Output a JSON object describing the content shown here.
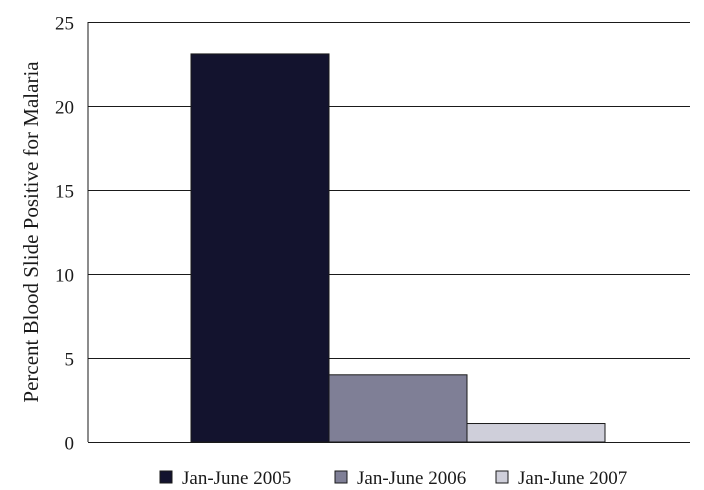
{
  "chart_data": {
    "type": "bar",
    "xlabel": "",
    "ylabel": "Percent Blood Slide Positive for Malaria",
    "ylim": [
      0,
      25
    ],
    "yticks": [
      0,
      5,
      10,
      15,
      20,
      25
    ],
    "grid": true,
    "legend_position": "bottom",
    "series": [
      {
        "name": "Jan-June 2005",
        "value": 23.1,
        "color": "#13132e"
      },
      {
        "name": "Jan-June 2006",
        "value": 4.0,
        "color": "#7f7f96"
      },
      {
        "name": "Jan-June 2007",
        "value": 1.1,
        "color": "#cfcfda"
      }
    ]
  }
}
